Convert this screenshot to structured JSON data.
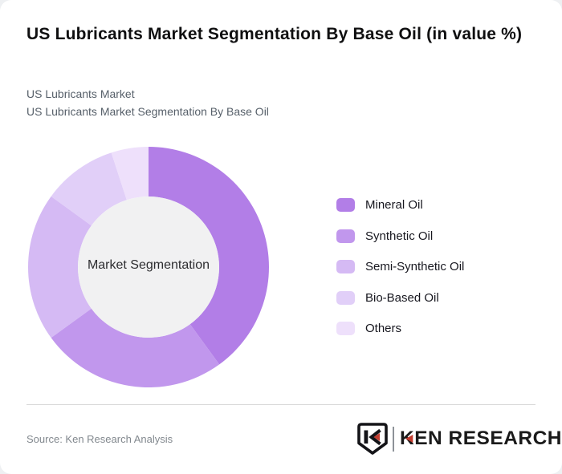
{
  "page": {
    "background": "#eef0f2",
    "card_background": "#ffffff"
  },
  "header": {
    "title": "US Lubricants Market Segmentation By Base Oil (in value %)",
    "subtitle_line1": "US Lubricants Market",
    "subtitle_line2": "US Lubricants Market Segmentation By Base Oil"
  },
  "chart_data": {
    "type": "pie",
    "variant": "donut",
    "title": "US Lubricants Market Segmentation By Base Oil (in value %)",
    "center_label": "Market Segmentation",
    "categories": [
      "Mineral Oil",
      "Synthetic Oil",
      "Semi-Synthetic Oil",
      "Bio-Based Oil",
      "Others"
    ],
    "values": [
      40,
      25,
      20,
      10,
      5
    ],
    "unit": "percent",
    "colors": [
      "#b27ee7",
      "#c197ed",
      "#d5baf4",
      "#e1cff8",
      "#eee0fb"
    ],
    "inner_circle_color": "#f1f1f2",
    "start_angle_deg": 0,
    "direction": "clockwise",
    "legend_position": "right"
  },
  "footer": {
    "source": "Source: Ken Research Analysis",
    "logo_text": "KEN RESEARCH",
    "logo_accent_color": "#c23b2e"
  }
}
